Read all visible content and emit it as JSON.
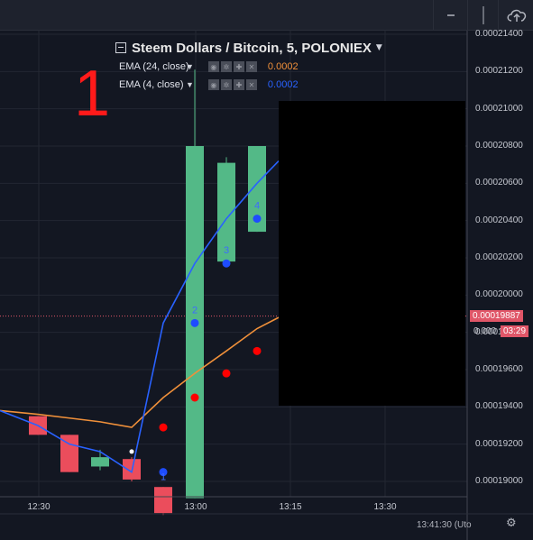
{
  "legend": {
    "title": "Steem Dollars / Bitcoin, 5, POLONIEX",
    "indicators": [
      {
        "name": "EMA (24, close)",
        "value": "0.0002",
        "color": "#f0903a"
      },
      {
        "name": "EMA (4, close)",
        "value": "0.0002",
        "color": "#2962ff"
      }
    ]
  },
  "annotation_label": "1",
  "price_axis": {
    "labels": [
      "0.00021400",
      "0.00021200",
      "0.00021000",
      "0.00020800",
      "0.00020600",
      "0.00020400",
      "0.00020200",
      "0.00020000",
      "0.00019800",
      "0.00019600",
      "0.00019400",
      "0.00019200",
      "0.00019000"
    ],
    "current_price": "0.00019887",
    "current_price_partial": "0.000",
    "countdown": "03:29"
  },
  "time_axis": {
    "labels": [
      "12:30",
      "13:00",
      "13:15",
      "13:30"
    ],
    "clock": "13:41:30 (Uto"
  },
  "chart_data": {
    "type": "candlestick",
    "symbol": "Steem Dollars / Bitcoin",
    "interval": "5",
    "exchange": "POLONIEX",
    "x_labels": [
      "12:30",
      "13:00",
      "13:15",
      "13:30"
    ],
    "y_range": [
      0.000189,
      0.000215
    ],
    "candles": [
      {
        "open": 0.0001935,
        "high": 0.0001935,
        "low": 0.0001925,
        "close": 0.0001925,
        "dir": "down"
      },
      {
        "open": 0.0001925,
        "high": 0.0001925,
        "low": 0.0001905,
        "close": 0.0001905,
        "dir": "down"
      },
      {
        "open": 0.0001908,
        "high": 0.0001917,
        "low": 0.0001906,
        "close": 0.0001913,
        "dir": "up"
      },
      {
        "open": 0.0001912,
        "high": 0.0001913,
        "low": 0.00019,
        "close": 0.0001901,
        "dir": "down"
      },
      {
        "open": 0.0001897,
        "high": 0.0001897,
        "low": 0.0001882,
        "close": 0.0001883,
        "dir": "down"
      },
      {
        "open": 0.0001891,
        "high": 0.0002121,
        "low": 0.0001891,
        "close": 0.000208,
        "dir": "up"
      },
      {
        "open": 0.0002018,
        "high": 0.0002074,
        "low": 0.0002018,
        "close": 0.0002071,
        "dir": "up"
      },
      {
        "open": 0.0002034,
        "high": 0.000208,
        "low": 0.0002034,
        "close": 0.000208,
        "dir": "up"
      }
    ],
    "series": [
      {
        "name": "EMA (24, close)",
        "color": "#f0903a",
        "values": [
          0.0001938,
          0.0001936,
          0.0001934,
          0.0001932,
          0.0001929,
          0.0001945,
          0.0001958,
          0.000197,
          0.0001982
        ]
      },
      {
        "name": "EMA (4, close)",
        "color": "#2962ff",
        "values": [
          0.0001938,
          0.000193,
          0.000192,
          0.0001916,
          0.0001905,
          0.0001985,
          0.0002017,
          0.0002041,
          0.000206
        ]
      }
    ],
    "ema24_markers": [
      0.0001929,
      0.0001945,
      0.0001958,
      0.000197
    ],
    "ema4_markers": [
      0.0001905,
      0.0001985,
      0.0002017,
      0.0002041
    ],
    "ema4_marker_labels": [
      "1",
      "2",
      "3",
      "4"
    ],
    "current_price_line": 0.00019887
  },
  "colors": {
    "background": "#131722",
    "up": "#53b987",
    "down": "#eb4d5c",
    "grid": "#2a2e39",
    "axis_text": "#c5c8d0"
  }
}
